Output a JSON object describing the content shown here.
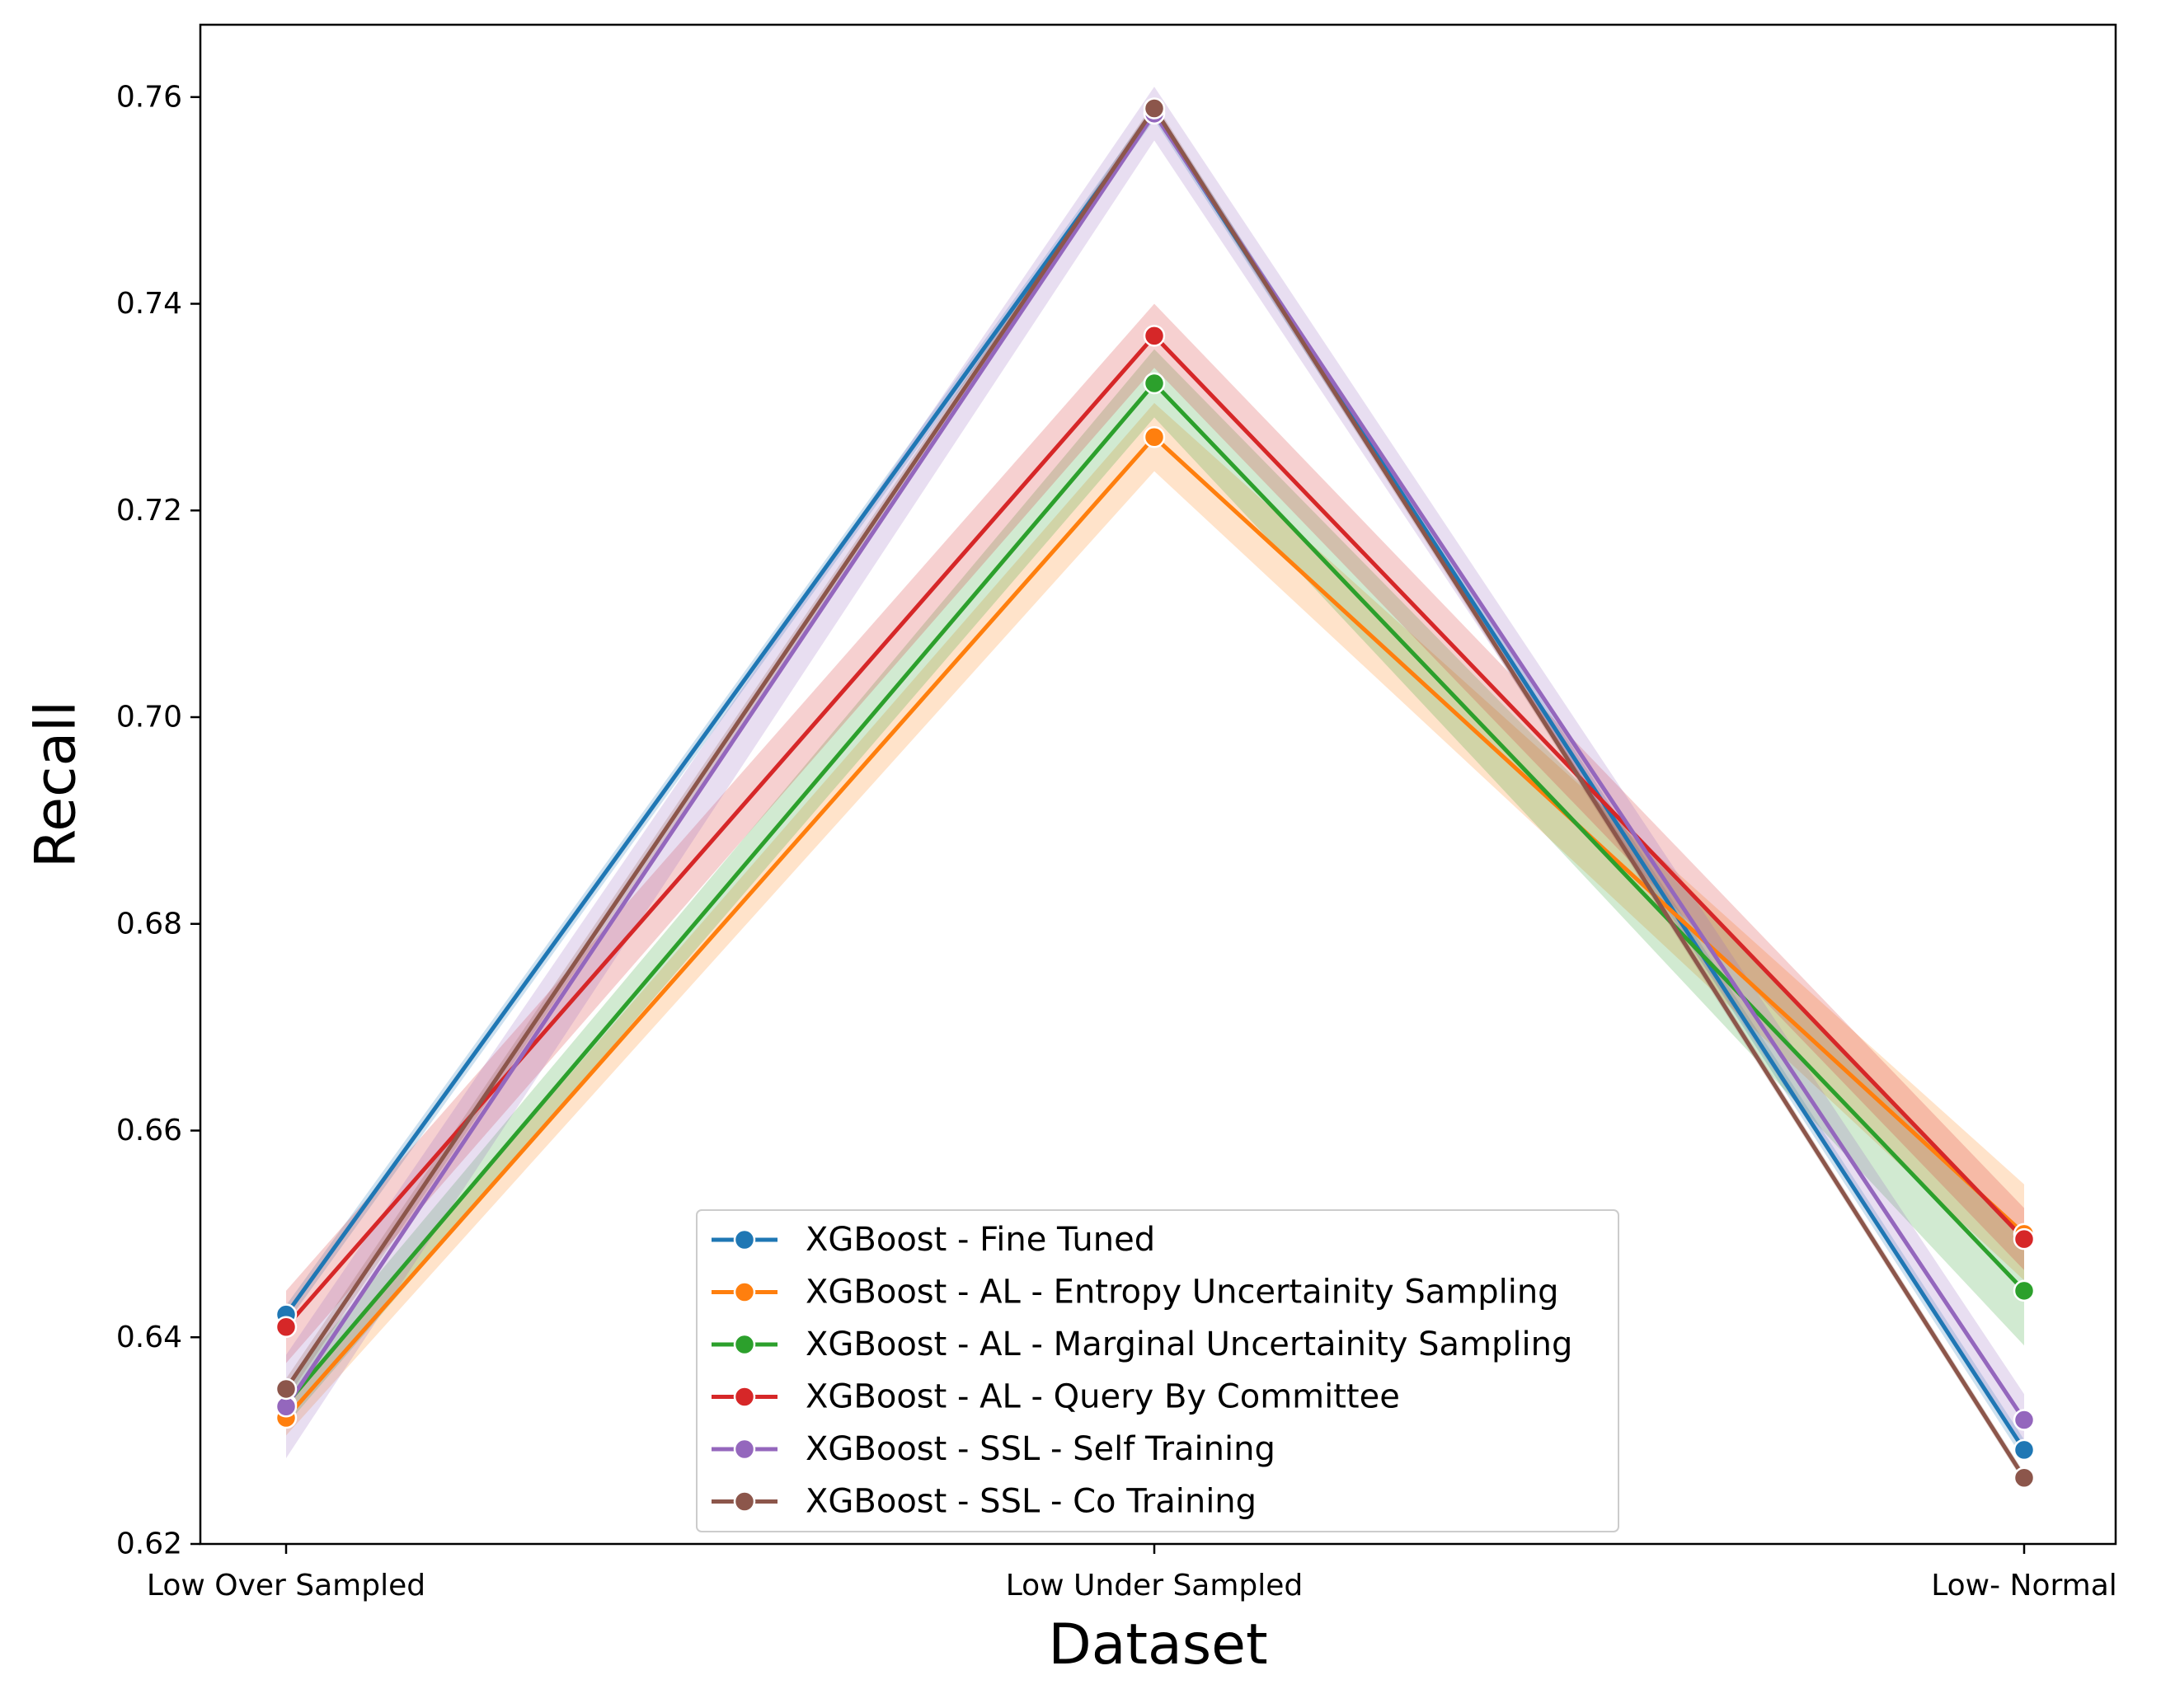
{
  "chart_data": {
    "type": "line",
    "title": "",
    "xlabel": "Dataset",
    "ylabel": "Recall",
    "categories": [
      "Low Over Sampled",
      "Low Under Sampled",
      "Low- Normal"
    ],
    "ylim": [
      0.62,
      0.767
    ],
    "yticks": [
      0.62,
      0.64,
      0.66,
      0.68,
      0.7,
      0.72,
      0.74,
      0.76
    ],
    "ytick_labels": [
      "0.62",
      "0.64",
      "0.66",
      "0.68",
      "0.70",
      "0.72",
      "0.74",
      "0.76"
    ],
    "grid": false,
    "legend_position": "bottom-center",
    "series": [
      {
        "name": "XGBoost - Fine Tuned",
        "color": "#1f77b4",
        "values": [
          0.6422,
          0.7585,
          0.6291
        ],
        "ci_low": [
          0.6413,
          0.7578,
          0.6281
        ],
        "ci_high": [
          0.6431,
          0.7592,
          0.6301
        ]
      },
      {
        "name": "XGBoost - AL - Entropy Uncertainity Sampling",
        "color": "#ff7f0e",
        "values": [
          0.6322,
          0.7271,
          0.65
        ],
        "ci_low": [
          0.6305,
          0.7238,
          0.6455
        ],
        "ci_high": [
          0.6339,
          0.7304,
          0.6548
        ]
      },
      {
        "name": "XGBoost - AL - Marginal Uncertainity Sampling",
        "color": "#2ca02c",
        "values": [
          0.6335,
          0.7323,
          0.6445
        ],
        "ci_low": [
          0.6315,
          0.729,
          0.6392
        ],
        "ci_high": [
          0.6355,
          0.7356,
          0.6498
        ]
      },
      {
        "name": "XGBoost - AL - Query By Committee",
        "color": "#d62728",
        "values": [
          0.641,
          0.7369,
          0.6495
        ],
        "ci_low": [
          0.6375,
          0.7338,
          0.6465
        ],
        "ci_high": [
          0.6445,
          0.74,
          0.6525
        ]
      },
      {
        "name": "XGBoost - SSL - Self Training",
        "color": "#9467bd",
        "values": [
          0.6333,
          0.7584,
          0.632
        ],
        "ci_low": [
          0.6283,
          0.7558,
          0.6295
        ],
        "ci_high": [
          0.6383,
          0.761,
          0.6345
        ]
      },
      {
        "name": "XGBoost - SSL - Co Training",
        "color": "#8c564b",
        "values": [
          0.635,
          0.7589,
          0.6264
        ],
        "ci_low": [
          0.634,
          0.7583,
          0.6259
        ],
        "ci_high": [
          0.636,
          0.7595,
          0.6269
        ]
      }
    ]
  }
}
